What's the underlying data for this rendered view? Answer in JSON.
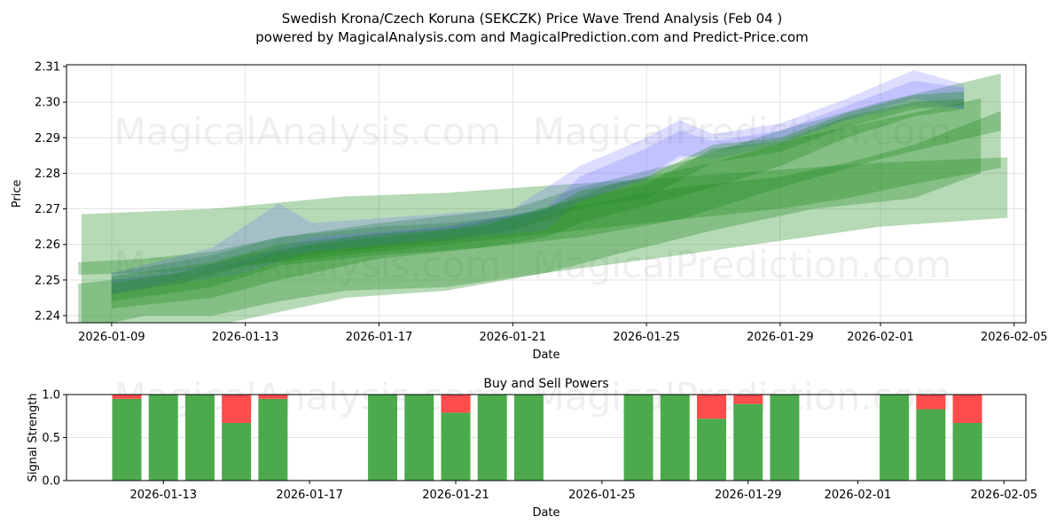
{
  "title_line1": "Swedish Krona/Czech Koruna (SEKCZK) Price Wave Trend Analysis (Feb 04 )",
  "title_line2": "powered by MagicalAnalysis.com and MagicalPrediction.com and Predict-Price.com",
  "watermarks": [
    "MagicalAnalysis.com",
    "MagicalPrediction.com"
  ],
  "colors": {
    "green_band": "#228B22",
    "blue_band": "#6464ff",
    "buy": "#4caa4c",
    "sell": "#ff4c4c"
  },
  "chart_data": [
    {
      "type": "area",
      "title": "",
      "xlabel": "Date",
      "ylabel": "Price",
      "x_origin": "2026-01-09",
      "x_unit": "days since 2026-01-09",
      "xlim": [
        -1.35,
        27.35
      ],
      "ylim": [
        2.238,
        2.3105
      ],
      "grid": true,
      "xticks": [
        {
          "d": 0,
          "label": "2026-01-09"
        },
        {
          "d": 4,
          "label": "2026-01-13"
        },
        {
          "d": 8,
          "label": "2026-01-17"
        },
        {
          "d": 12,
          "label": "2026-01-21"
        },
        {
          "d": 16,
          "label": "2026-01-25"
        },
        {
          "d": 20,
          "label": "2026-01-29"
        },
        {
          "d": 23,
          "label": "2026-02-01"
        },
        {
          "d": 27,
          "label": "2026-02-05"
        }
      ],
      "yticks": [
        {
          "v": 2.24,
          "label": "2.24"
        },
        {
          "v": 2.25,
          "label": "2.25"
        },
        {
          "v": 2.26,
          "label": "2.26"
        },
        {
          "v": 2.27,
          "label": "2.27"
        },
        {
          "v": 2.28,
          "label": "2.28"
        },
        {
          "v": 2.29,
          "label": "2.29"
        },
        {
          "v": 2.3,
          "label": "2.30"
        },
        {
          "v": 2.31,
          "label": "2.31"
        }
      ],
      "bands": [
        {
          "color": "green",
          "x": [
            -0.9,
            3,
            7,
            10,
            13,
            17,
            20,
            23,
            26.8
          ],
          "upper": [
            2.2685,
            2.27,
            2.2735,
            2.2745,
            2.2765,
            2.279,
            2.281,
            2.283,
            2.2845
          ],
          "lower": [
            2.236,
            2.237,
            2.245,
            2.247,
            2.252,
            2.257,
            2.261,
            2.265,
            2.2675
          ]
        },
        {
          "color": "green",
          "x": [
            -1,
            1,
            3,
            5,
            8,
            10,
            12,
            14,
            17,
            20,
            22,
            24,
            26.6
          ],
          "upper": [
            2.255,
            2.256,
            2.258,
            2.262,
            2.265,
            2.266,
            2.268,
            2.271,
            2.276,
            2.279,
            2.283,
            2.288,
            2.2975
          ],
          "lower": [
            2.2515,
            2.252,
            2.253,
            2.255,
            2.258,
            2.26,
            2.262,
            2.264,
            2.267,
            2.27,
            2.273,
            2.277,
            2.2815
          ]
        },
        {
          "color": "green",
          "x": [
            0,
            3,
            5,
            8,
            12,
            14,
            17,
            20,
            23,
            26.6
          ],
          "upper": [
            2.252,
            2.257,
            2.262,
            2.266,
            2.27,
            2.276,
            2.283,
            2.292,
            2.3,
            2.308
          ],
          "lower": [
            2.242,
            2.245,
            2.25,
            2.256,
            2.26,
            2.262,
            2.267,
            2.276,
            2.284,
            2.292
          ]
        },
        {
          "color": "green",
          "x": [
            -1,
            1,
            3,
            5,
            7,
            10,
            13,
            15,
            18,
            21,
            24,
            26
          ],
          "upper": [
            2.249,
            2.251,
            2.253,
            2.258,
            2.262,
            2.265,
            2.27,
            2.277,
            2.283,
            2.291,
            2.297,
            2.301
          ],
          "lower": [
            2.236,
            2.24,
            2.24,
            2.244,
            2.247,
            2.248,
            2.252,
            2.257,
            2.264,
            2.27,
            2.273,
            2.28
          ]
        },
        {
          "color": "blue",
          "x": [
            -0.4,
            3,
            3.1,
            -0.4
          ],
          "upper": [
            2.264,
            2.264,
            2.264,
            2.264
          ],
          "lower": [
            2.258,
            2.258,
            2.258,
            2.258
          ]
        },
        {
          "color": "blue",
          "x": [
            0,
            3,
            5,
            6,
            9,
            12,
            14,
            16,
            17,
            18,
            20,
            22,
            24,
            25.5
          ],
          "upper": [
            2.252,
            2.259,
            2.2715,
            2.266,
            2.268,
            2.27,
            2.282,
            2.29,
            2.295,
            2.291,
            2.294,
            2.301,
            2.309,
            2.305
          ],
          "lower": [
            2.246,
            2.252,
            2.257,
            2.258,
            2.261,
            2.264,
            2.272,
            2.278,
            2.284,
            2.286,
            2.289,
            2.295,
            2.299,
            2.298
          ]
        },
        {
          "color": "blue",
          "x": [
            0,
            4,
            6,
            10,
            13,
            14,
            16,
            17,
            18,
            20,
            22,
            24,
            25.5
          ],
          "upper": [
            2.25,
            2.256,
            2.262,
            2.265,
            2.27,
            2.279,
            2.287,
            2.292,
            2.289,
            2.292,
            2.299,
            2.306,
            2.304
          ],
          "lower": [
            2.246,
            2.252,
            2.258,
            2.261,
            2.264,
            2.272,
            2.279,
            2.285,
            2.284,
            2.288,
            2.295,
            2.301,
            2.298
          ]
        },
        {
          "color": "green",
          "x": [
            0,
            3,
            5,
            8,
            11,
            13,
            14,
            16,
            18,
            20,
            22,
            24,
            25.5
          ],
          "upper": [
            2.251,
            2.255,
            2.26,
            2.263,
            2.265,
            2.27,
            2.275,
            2.279,
            2.288,
            2.29,
            2.297,
            2.302,
            2.303
          ],
          "lower": [
            2.244,
            2.248,
            2.254,
            2.257,
            2.259,
            2.262,
            2.266,
            2.271,
            2.276,
            2.282,
            2.29,
            2.296,
            2.298
          ]
        },
        {
          "color": "green",
          "x": [
            0,
            2,
            4,
            6,
            8,
            10,
            12,
            14,
            16,
            18,
            20,
            22,
            24,
            25.5
          ],
          "upper": [
            2.249,
            2.252,
            2.257,
            2.26,
            2.262,
            2.264,
            2.268,
            2.273,
            2.277,
            2.287,
            2.289,
            2.296,
            2.3,
            2.301
          ],
          "lower": [
            2.246,
            2.249,
            2.254,
            2.257,
            2.259,
            2.261,
            2.264,
            2.27,
            2.273,
            2.283,
            2.286,
            2.293,
            2.298,
            2.299
          ]
        }
      ]
    },
    {
      "type": "bar",
      "title": "Buy and Sell Powers",
      "xlabel": "Date",
      "ylabel": "Signal Strength",
      "xlim": [
        1.35,
        27.6
      ],
      "ylim": [
        0,
        1
      ],
      "xticks": [
        {
          "d": 4,
          "label": "2026-01-13"
        },
        {
          "d": 8,
          "label": "2026-01-17"
        },
        {
          "d": 12,
          "label": "2026-01-21"
        },
        {
          "d": 16,
          "label": "2026-01-25"
        },
        {
          "d": 20,
          "label": "2026-01-29"
        },
        {
          "d": 23,
          "label": "2026-02-01"
        },
        {
          "d": 27,
          "label": "2026-02-05"
        }
      ],
      "yticks": [
        {
          "v": 0,
          "label": "0.0"
        },
        {
          "v": 0.5,
          "label": "0.5"
        },
        {
          "v": 1,
          "label": "1.0"
        }
      ],
      "categories": [
        "2026-01-12",
        "2026-01-13",
        "2026-01-14",
        "2026-01-15",
        "2026-01-16",
        "2026-01-19",
        "2026-01-20",
        "2026-01-21",
        "2026-01-22",
        "2026-01-23",
        "2026-01-26",
        "2026-01-27",
        "2026-01-28",
        "2026-01-29",
        "2026-01-30",
        "2026-02-02",
        "2026-02-03",
        "2026-02-04"
      ],
      "x": [
        3,
        4,
        5,
        6,
        7,
        10,
        11,
        12,
        13,
        14,
        17,
        18,
        19,
        20,
        21,
        24,
        25,
        26
      ],
      "series": [
        {
          "name": "Buy",
          "values": [
            0.95,
            1,
            1,
            0.67,
            0.95,
            1,
            1,
            0.79,
            1,
            1,
            1,
            1,
            0.72,
            0.89,
            1,
            1,
            0.83,
            0.67
          ]
        },
        {
          "name": "Sell",
          "values": [
            0.05,
            0,
            0,
            0.33,
            0.05,
            0,
            0,
            0.21,
            0,
            0,
            0,
            0,
            0.28,
            0.11,
            0,
            0,
            0.17,
            0.33
          ]
        }
      ]
    }
  ]
}
